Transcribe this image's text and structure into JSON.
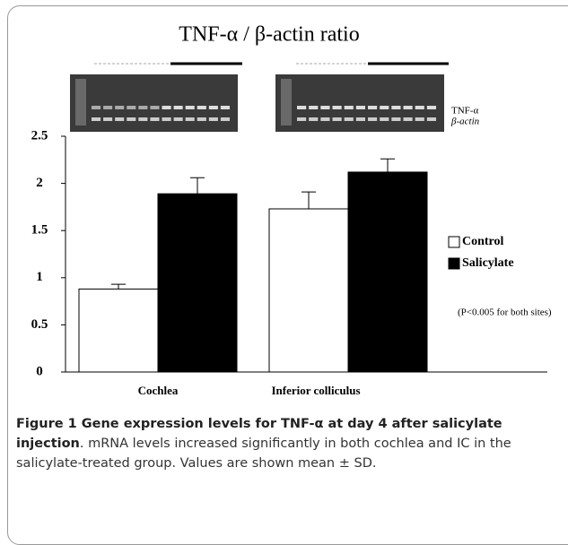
{
  "chart_data": {
    "type": "bar",
    "title": "TNF-α / β-actin ratio",
    "gel_labels": [
      "TNF-α",
      "β-actin"
    ],
    "categories": [
      "Cochlea",
      "Inferior colliculus"
    ],
    "series": [
      {
        "name": "Control",
        "color": "#ffffff",
        "values": [
          0.88,
          1.73
        ],
        "errors": [
          0.05,
          0.18
        ]
      },
      {
        "name": "Salicylate",
        "color": "#000000",
        "values": [
          1.89,
          2.12
        ],
        "errors": [
          0.17,
          0.14
        ]
      }
    ],
    "ylim": [
      0,
      2.5
    ],
    "yticks": [
      0,
      0.5,
      1,
      1.5,
      2,
      2.5
    ],
    "annotation": "(P<0.005 for both sites)"
  },
  "caption": {
    "bold": "Figure 1 Gene expression levels for TNF-α at day 4 after salicylate injection",
    "text": ". mRNA levels increased significantly in both cochlea and IC in the salicylate-treated group. Values are shown mean ± SD."
  }
}
